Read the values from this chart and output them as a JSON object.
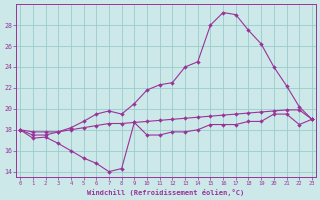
{
  "bg_color": "#cce8e8",
  "grid_color": "#99cccc",
  "line_color": "#993399",
  "xlim_min": -0.3,
  "xlim_max": 23.3,
  "ylim_min": 13.5,
  "ylim_max": 30.0,
  "yticks": [
    14,
    16,
    18,
    20,
    22,
    24,
    26,
    28
  ],
  "xticks": [
    0,
    1,
    2,
    3,
    4,
    5,
    6,
    7,
    8,
    9,
    10,
    11,
    12,
    13,
    14,
    15,
    16,
    17,
    18,
    19,
    20,
    21,
    22,
    23
  ],
  "xlabel": "Windchill (Refroidissement éolien,°C)",
  "line1_x": [
    0,
    1,
    2,
    3,
    4,
    5,
    6,
    7,
    8,
    9,
    10,
    11,
    12,
    13,
    14,
    15,
    16,
    17,
    18,
    19,
    20,
    21,
    22,
    23
  ],
  "line1_y": [
    18.0,
    17.8,
    17.8,
    17.8,
    18.0,
    18.2,
    18.4,
    18.6,
    18.6,
    18.7,
    18.8,
    18.9,
    19.0,
    19.1,
    19.2,
    19.3,
    19.4,
    19.5,
    19.6,
    19.7,
    19.8,
    19.9,
    19.9,
    19.0
  ],
  "line2_x": [
    0,
    1,
    2,
    3,
    4,
    5,
    6,
    7,
    8,
    9,
    10,
    11,
    12,
    13,
    14,
    15,
    16,
    17,
    18,
    19,
    20,
    21,
    22,
    23
  ],
  "line2_y": [
    18.0,
    17.2,
    17.3,
    16.7,
    16.0,
    15.3,
    14.8,
    14.0,
    14.3,
    18.7,
    17.5,
    17.5,
    17.8,
    17.8,
    18.0,
    18.5,
    18.5,
    18.5,
    18.8,
    18.8,
    19.5,
    19.5,
    18.5,
    19.0
  ],
  "line3_x": [
    0,
    1,
    2,
    3,
    4,
    5,
    6,
    7,
    8,
    9,
    10,
    11,
    12,
    13,
    14,
    15,
    16,
    17,
    18,
    19,
    20,
    21,
    22,
    23
  ],
  "line3_y": [
    18.0,
    17.5,
    17.5,
    17.8,
    18.2,
    18.8,
    19.5,
    19.8,
    19.5,
    20.5,
    21.8,
    22.3,
    22.5,
    24.0,
    24.5,
    28.0,
    29.2,
    29.0,
    27.5,
    26.2,
    24.0,
    22.2,
    20.2,
    19.0
  ]
}
